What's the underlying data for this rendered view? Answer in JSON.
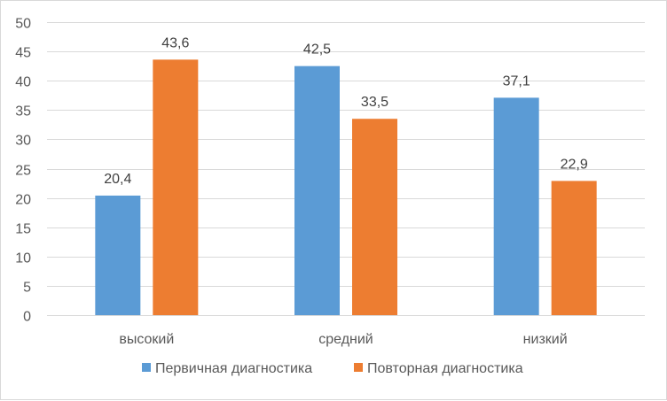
{
  "chart_data": {
    "type": "bar",
    "title": "",
    "xlabel": "",
    "ylabel": "",
    "categories": [
      "высокий",
      "средний",
      "низкий"
    ],
    "series": [
      {
        "name": "Первичная диагностика",
        "color": "#5B9BD5",
        "values": [
          20.4,
          42.5,
          37.1
        ],
        "labels": [
          "20,4",
          "42,5",
          "37,1"
        ]
      },
      {
        "name": "Повторная диагностика",
        "color": "#ED7D31",
        "values": [
          43.6,
          33.5,
          22.9
        ],
        "labels": [
          "43,6",
          "33,5",
          "22,9"
        ]
      }
    ],
    "ylim": [
      0,
      50
    ],
    "yticks": [
      "0",
      "5",
      "10",
      "15",
      "20",
      "25",
      "30",
      "35",
      "40",
      "45",
      "50"
    ],
    "grid": true,
    "legend_position": "bottom",
    "gridline_color": "#d9d9d9"
  }
}
